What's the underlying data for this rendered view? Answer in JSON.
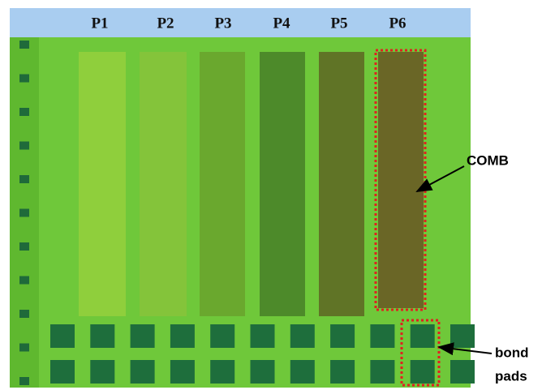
{
  "header": {
    "labels": [
      "P1",
      "P2",
      "P3",
      "P4",
      "P5",
      "P6"
    ]
  },
  "annotations": {
    "comb": "COMB",
    "bond_pads": [
      "bond",
      "pads"
    ]
  }
}
